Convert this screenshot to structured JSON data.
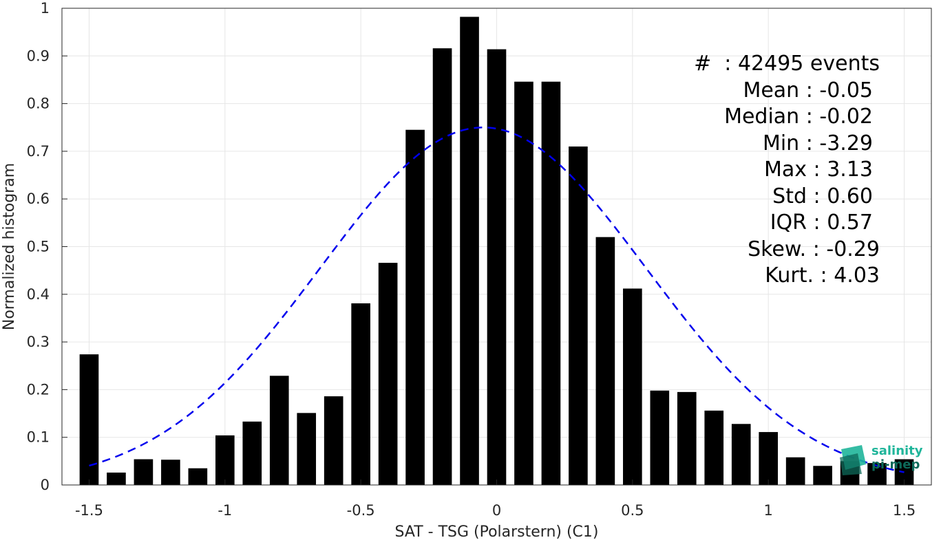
{
  "chart_data": {
    "type": "bar",
    "title": "",
    "xlabel": "SAT - TSG (Polarstern) (C1)",
    "ylabel": "Normalized histogram",
    "xlim": [
      -1.6,
      1.6
    ],
    "ylim": [
      0,
      1
    ],
    "grid": true,
    "x_ticks": [
      "-1.5",
      "-1",
      "-0.5",
      "0",
      "0.5",
      "1",
      "1.5"
    ],
    "y_ticks": [
      "0",
      "0.1",
      "0.2",
      "0.3",
      "0.4",
      "0.5",
      "0.6",
      "0.7",
      "0.8",
      "0.9",
      "1"
    ],
    "bar_width": 0.07,
    "bar_color": "#000000",
    "series": [
      {
        "x": [
          -1.5,
          -1.4,
          -1.3,
          -1.2,
          -1.1,
          -1.0,
          -0.9,
          -0.8,
          -0.7,
          -0.6,
          -0.5,
          -0.4,
          -0.3,
          -0.2,
          -0.1,
          0.0,
          0.1,
          0.2,
          0.3,
          0.4,
          0.5,
          0.6,
          0.7,
          0.8,
          0.9,
          1.0,
          1.1,
          1.2,
          1.3,
          1.4,
          1.5
        ],
        "values": [
          0.274,
          0.026,
          0.054,
          0.053,
          0.035,
          0.104,
          0.133,
          0.229,
          0.151,
          0.186,
          0.381,
          0.466,
          0.745,
          0.916,
          0.982,
          0.914,
          0.846,
          0.846,
          0.71,
          0.52,
          0.412,
          0.198,
          0.195,
          0.156,
          0.128,
          0.111,
          0.058,
          0.04,
          0.05,
          0.046,
          0.054
        ]
      }
    ],
    "fit_curve": {
      "style": "dashed",
      "color": "#0000ee",
      "mean": -0.05,
      "std": 0.6,
      "peak": 0.75,
      "x_range": [
        -1.5,
        1.5
      ]
    },
    "annotations": [
      "#  : 42495 events",
      "Mean : -0.05",
      "Median : -0.02",
      "Min : -3.29",
      "Max : 3.13",
      "Std : 0.60",
      "IQR : 0.57",
      "Skew. : -0.29",
      "Kurt. : 4.03"
    ]
  },
  "logo": {
    "line1": "salinity",
    "line2": "pi-mep",
    "colors": [
      "#1fb59a",
      "#0d6a5a"
    ]
  }
}
